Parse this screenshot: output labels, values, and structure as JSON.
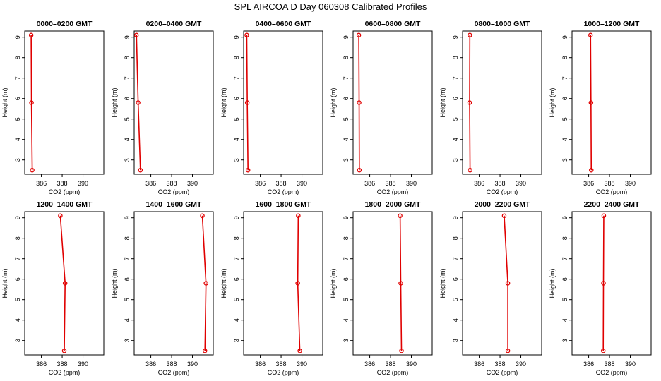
{
  "figure": {
    "title": "SPL AIRCOA D  Day 060308  Calibrated Profiles"
  },
  "colors": {
    "series": "#e00000",
    "axis": "#000000"
  },
  "chart_data": [
    {
      "type": "line",
      "title": "0000–0200 GMT",
      "xlabel": "CO2 (ppm)",
      "ylabel": "Height (m)",
      "xlim": [
        384.4,
        392.0
      ],
      "ylim": [
        2.3,
        9.3
      ],
      "xticks": [
        "386",
        "388",
        "390"
      ],
      "yticks": [
        "3",
        "4",
        "5",
        "6",
        "7",
        "8",
        "9"
      ],
      "x": [
        385.12,
        385.05,
        385.02
      ],
      "y": [
        2.5,
        5.8,
        9.1
      ]
    },
    {
      "type": "line",
      "title": "0200–0400 GMT",
      "xlabel": "CO2 (ppm)",
      "ylabel": "Height (m)",
      "xlim": [
        384.4,
        392.0
      ],
      "ylim": [
        2.3,
        9.3
      ],
      "xticks": [
        "386",
        "388",
        "390"
      ],
      "yticks": [
        "3",
        "4",
        "5",
        "6",
        "7",
        "8",
        "9"
      ],
      "x": [
        385.0,
        384.78,
        384.62
      ],
      "y": [
        2.5,
        5.8,
        9.1
      ]
    },
    {
      "type": "line",
      "title": "0400–0600 GMT",
      "xlabel": "CO2 (ppm)",
      "ylabel": "Height (m)",
      "xlim": [
        384.4,
        392.0
      ],
      "ylim": [
        2.3,
        9.3
      ],
      "xticks": [
        "386",
        "388",
        "390"
      ],
      "yticks": [
        "3",
        "4",
        "5",
        "6",
        "7",
        "8",
        "9"
      ],
      "x": [
        384.82,
        384.75,
        384.7
      ],
      "y": [
        2.5,
        5.8,
        9.1
      ]
    },
    {
      "type": "line",
      "title": "0600–0800 GMT",
      "xlabel": "CO2 (ppm)",
      "ylabel": "Height (m)",
      "xlim": [
        384.4,
        392.0
      ],
      "ylim": [
        2.3,
        9.3
      ],
      "xticks": [
        "386",
        "388",
        "390"
      ],
      "yticks": [
        "3",
        "4",
        "5",
        "6",
        "7",
        "8",
        "9"
      ],
      "x": [
        385.0,
        384.98,
        384.95
      ],
      "y": [
        2.5,
        5.8,
        9.1
      ]
    },
    {
      "type": "line",
      "title": "0800–1000 GMT",
      "xlabel": "CO2 (ppm)",
      "ylabel": "Height (m)",
      "xlim": [
        384.4,
        392.0
      ],
      "ylim": [
        2.3,
        9.3
      ],
      "xticks": [
        "386",
        "388",
        "390"
      ],
      "yticks": [
        "3",
        "4",
        "5",
        "6",
        "7",
        "8",
        "9"
      ],
      "x": [
        385.12,
        385.08,
        385.1
      ],
      "y": [
        2.5,
        5.8,
        9.1
      ]
    },
    {
      "type": "line",
      "title": "1000–1200 GMT",
      "xlabel": "CO2 (ppm)",
      "ylabel": "Height (m)",
      "xlim": [
        384.4,
        392.0
      ],
      "ylim": [
        2.3,
        9.3
      ],
      "xticks": [
        "386",
        "388",
        "390"
      ],
      "yticks": [
        "3",
        "4",
        "5",
        "6",
        "7",
        "8",
        "9"
      ],
      "x": [
        386.25,
        386.22,
        386.18
      ],
      "y": [
        2.5,
        5.8,
        9.1
      ]
    },
    {
      "type": "line",
      "title": "1200–1400 GMT",
      "xlabel": "CO2 (ppm)",
      "ylabel": "Height (m)",
      "xlim": [
        384.4,
        392.0
      ],
      "ylim": [
        2.3,
        9.3
      ],
      "xticks": [
        "386",
        "388",
        "390"
      ],
      "yticks": [
        "3",
        "4",
        "5",
        "6",
        "7",
        "8",
        "9"
      ],
      "x": [
        388.2,
        388.28,
        387.82
      ],
      "y": [
        2.5,
        5.8,
        9.1
      ]
    },
    {
      "type": "line",
      "title": "1400–1600 GMT",
      "xlabel": "CO2 (ppm)",
      "ylabel": "Height (m)",
      "xlim": [
        384.4,
        392.0
      ],
      "ylim": [
        2.3,
        9.3
      ],
      "xticks": [
        "386",
        "388",
        "390"
      ],
      "yticks": [
        "3",
        "4",
        "5",
        "6",
        "7",
        "8",
        "9"
      ],
      "x": [
        391.2,
        391.3,
        390.95
      ],
      "y": [
        2.5,
        5.8,
        9.1
      ]
    },
    {
      "type": "line",
      "title": "1600–1800 GMT",
      "xlabel": "CO2 (ppm)",
      "ylabel": "Height (m)",
      "xlim": [
        384.4,
        392.0
      ],
      "ylim": [
        2.3,
        9.3
      ],
      "xticks": [
        "386",
        "388",
        "390"
      ],
      "yticks": [
        "3",
        "4",
        "5",
        "6",
        "7",
        "8",
        "9"
      ],
      "x": [
        389.8,
        389.6,
        389.65
      ],
      "y": [
        2.5,
        5.8,
        9.1
      ]
    },
    {
      "type": "line",
      "title": "1800–2000 GMT",
      "xlabel": "CO2 (ppm)",
      "ylabel": "Height (m)",
      "xlim": [
        384.4,
        392.0
      ],
      "ylim": [
        2.3,
        9.3
      ],
      "xticks": [
        "386",
        "388",
        "390"
      ],
      "yticks": [
        "3",
        "4",
        "5",
        "6",
        "7",
        "8",
        "9"
      ],
      "x": [
        389.05,
        388.98,
        388.92
      ],
      "y": [
        2.5,
        5.8,
        9.1
      ]
    },
    {
      "type": "line",
      "title": "2000–2200 GMT",
      "xlabel": "CO2 (ppm)",
      "ylabel": "Height (m)",
      "xlim": [
        384.4,
        392.0
      ],
      "ylim": [
        2.3,
        9.3
      ],
      "xticks": [
        "386",
        "388",
        "390"
      ],
      "yticks": [
        "3",
        "4",
        "5",
        "6",
        "7",
        "8",
        "9"
      ],
      "x": [
        388.75,
        388.75,
        388.4
      ],
      "y": [
        2.5,
        5.8,
        9.1
      ]
    },
    {
      "type": "line",
      "title": "2200–2400 GMT",
      "xlabel": "CO2 (ppm)",
      "ylabel": "Height (m)",
      "xlim": [
        384.4,
        392.0
      ],
      "ylim": [
        2.3,
        9.3
      ],
      "xticks": [
        "386",
        "388",
        "390"
      ],
      "yticks": [
        "3",
        "4",
        "5",
        "6",
        "7",
        "8",
        "9"
      ],
      "x": [
        387.4,
        387.42,
        387.45
      ],
      "y": [
        2.5,
        5.8,
        9.1
      ]
    }
  ]
}
